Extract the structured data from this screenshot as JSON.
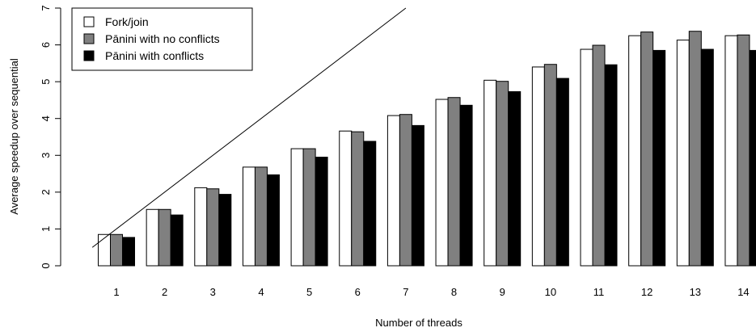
{
  "chart_data": {
    "type": "bar",
    "title": "",
    "xlabel": "Number of threads",
    "ylabel": "Average speedup over sequential",
    "ylim": [
      0,
      7
    ],
    "yticks": [
      0,
      1,
      2,
      3,
      4,
      5,
      6,
      7
    ],
    "categories": [
      "1",
      "2",
      "3",
      "4",
      "5",
      "6",
      "7",
      "8",
      "9",
      "10",
      "11",
      "12",
      "13",
      "14"
    ],
    "series": [
      {
        "name": "Fork/join",
        "color": "#ffffff",
        "values": [
          0.85,
          1.53,
          2.12,
          2.68,
          3.18,
          3.66,
          4.08,
          4.52,
          5.04,
          5.4,
          5.88,
          6.25,
          6.13,
          6.25
        ]
      },
      {
        "name": "Pānini with no conflicts",
        "color": "#808080",
        "values": [
          0.85,
          1.53,
          2.09,
          2.68,
          3.18,
          3.64,
          4.11,
          4.57,
          5.01,
          5.47,
          5.99,
          6.35,
          6.37,
          6.27
        ]
      },
      {
        "name": "Pānini with conflicts",
        "color": "#000000",
        "values": [
          0.77,
          1.38,
          1.94,
          2.47,
          2.95,
          3.38,
          3.81,
          4.36,
          4.73,
          5.09,
          5.46,
          5.85,
          5.88,
          5.85
        ]
      }
    ],
    "reference_line": {
      "from": [
        0.5,
        0.5
      ],
      "to": [
        7,
        7
      ]
    },
    "legend_position": "top-left",
    "grid": false
  }
}
